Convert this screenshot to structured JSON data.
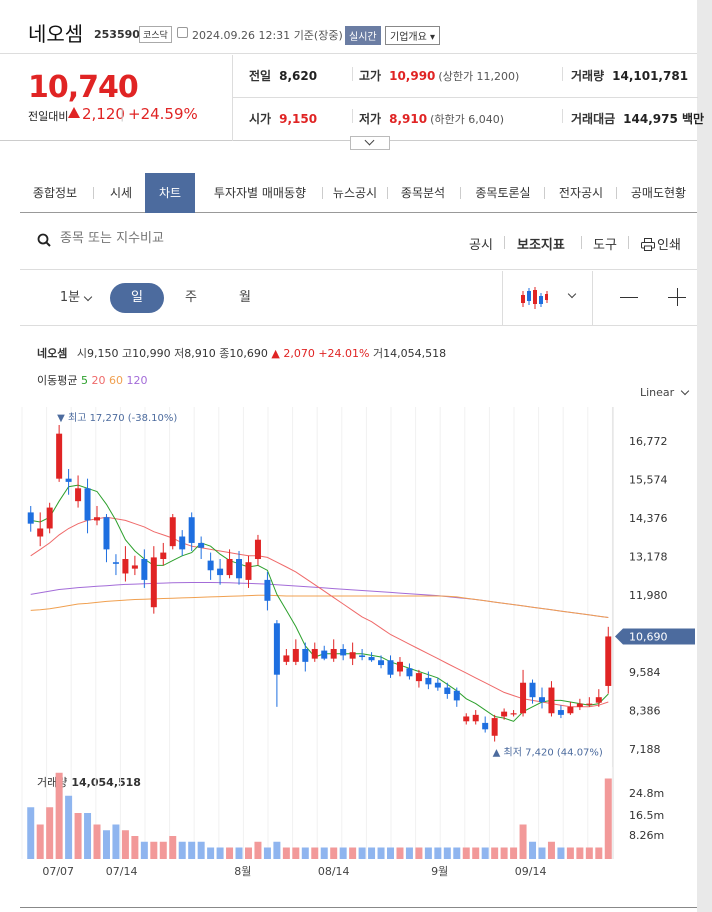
{
  "header": {
    "name": "네오셈",
    "code": "253590",
    "market": "코스닥",
    "datetime": "2024.09.26 12:31",
    "basis": "기준(장중)",
    "realtime": "실시간",
    "overview": "기업개요"
  },
  "quote": {
    "price": "10,740",
    "prev_label": "전일대비",
    "change": "2,120",
    "sep": "|",
    "change_pct": "+24.59%",
    "prev_close_label": "전일",
    "prev_close": "8,620",
    "high_label": "고가",
    "high": "10,990",
    "upper_limit": "(상한가 11,200)",
    "volume_label": "거래량",
    "volume": "14,101,781",
    "open_label": "시가",
    "open": "9,150",
    "low_label": "저가",
    "low": "8,910",
    "lower_limit": "(하한가 6,040)",
    "amount_label": "거래대금",
    "amount": "144,975 백만"
  },
  "tabs": [
    {
      "label": "종합정보"
    },
    {
      "label": "시세"
    },
    {
      "label": "차트"
    },
    {
      "label": "투자자별 매매동향"
    },
    {
      "label": "뉴스공시"
    },
    {
      "label": "종목분석"
    },
    {
      "label": "종목토론실"
    },
    {
      "label": "전자공시"
    },
    {
      "label": "공매도현황"
    }
  ],
  "toolbar": {
    "search_placeholder": "종목 또는 지수비교",
    "notice": "공시",
    "indicator": "보조지표",
    "tools": "도구",
    "print": "인쇄"
  },
  "periods": {
    "minute": "1분",
    "day": "일",
    "week": "주",
    "month": "월"
  },
  "legend": {
    "name": "네오셈",
    "open_k": "시",
    "open": "9,150",
    "high_k": "고",
    "high": "10,990",
    "low_k": "저",
    "low": "8,910",
    "close_k": "종",
    "close": "10,690",
    "change": "2,070",
    "change_pct": "+24.01%",
    "vol_k": "거",
    "vol": "14,054,518"
  },
  "ma": {
    "label": "이동평균",
    "p5": "5",
    "p20": "20",
    "p60": "60",
    "p120": "120",
    "c5": "#2ca02c",
    "c20": "#ef6a6a",
    "c60": "#f0a050",
    "c120": "#a36cd8"
  },
  "scale_mode": "Linear",
  "colors": {
    "up": "#e02424",
    "down": "#1e6fe0",
    "accent": "#4c6b9e"
  },
  "chart_data": {
    "type": "candlestick",
    "y_ticks": [
      "16,772",
      "15,574",
      "14,376",
      "13,178",
      "11,980",
      "9,584",
      "8,386",
      "7,188"
    ],
    "current_price_label": "10,690",
    "max_label": "최고 17,270 (-38.10%)",
    "min_label": "최저 7,420 (44.07%)",
    "x_ticks": [
      "07/07",
      "07/14",
      "8월",
      "08/14",
      "9월",
      "09/14"
    ],
    "volume_label": "거래량",
    "volume_value": "14,054,518",
    "volume_ticks": [
      "24.8m",
      "16.5m",
      "8.26m"
    ],
    "candles": [
      {
        "o": 14550,
        "c": 14200,
        "h": 14750,
        "l": 13950
      },
      {
        "o": 13800,
        "c": 14050,
        "h": 14550,
        "l": 13500
      },
      {
        "o": 14050,
        "c": 14700,
        "h": 14850,
        "l": 13900
      },
      {
        "o": 15600,
        "c": 17000,
        "h": 17270,
        "l": 15500
      },
      {
        "o": 15600,
        "c": 15500,
        "h": 15900,
        "l": 15100
      },
      {
        "o": 14900,
        "c": 15300,
        "h": 15700,
        "l": 14700
      },
      {
        "o": 15300,
        "c": 14300,
        "h": 15600,
        "l": 13900
      },
      {
        "o": 14300,
        "c": 14400,
        "h": 14750,
        "l": 14150
      },
      {
        "o": 14400,
        "c": 13400,
        "h": 14500,
        "l": 13000
      },
      {
        "o": 13000,
        "c": 12950,
        "h": 13250,
        "l": 12600
      },
      {
        "o": 12650,
        "c": 13100,
        "h": 13500,
        "l": 12400
      },
      {
        "o": 12800,
        "c": 12900,
        "h": 13200,
        "l": 12600
      },
      {
        "o": 13100,
        "c": 12450,
        "h": 13400,
        "l": 12200
      },
      {
        "o": 11600,
        "c": 13150,
        "h": 13500,
        "l": 11400
      },
      {
        "o": 13100,
        "c": 13300,
        "h": 13600,
        "l": 12900
      },
      {
        "o": 13500,
        "c": 14400,
        "h": 14500,
        "l": 13400
      },
      {
        "o": 13800,
        "c": 13400,
        "h": 14000,
        "l": 13200
      },
      {
        "o": 14400,
        "c": 13600,
        "h": 14550,
        "l": 13350
      },
      {
        "o": 13600,
        "c": 13450,
        "h": 13800,
        "l": 13100
      },
      {
        "o": 13050,
        "c": 12750,
        "h": 13300,
        "l": 12450
      },
      {
        "o": 12800,
        "c": 12600,
        "h": 13100,
        "l": 12300
      },
      {
        "o": 12600,
        "c": 13100,
        "h": 13400,
        "l": 12500
      },
      {
        "o": 13100,
        "c": 12500,
        "h": 13350,
        "l": 12300
      },
      {
        "o": 12450,
        "c": 13000,
        "h": 13200,
        "l": 12200
      },
      {
        "o": 13100,
        "c": 13700,
        "h": 13850,
        "l": 12900
      },
      {
        "o": 12450,
        "c": 11800,
        "h": 12700,
        "l": 11500
      },
      {
        "o": 11100,
        "c": 9500,
        "h": 11200,
        "l": 8500
      },
      {
        "o": 9900,
        "c": 10100,
        "h": 10300,
        "l": 9800
      },
      {
        "o": 9900,
        "c": 10300,
        "h": 10600,
        "l": 9800
      },
      {
        "o": 10300,
        "c": 9900,
        "h": 10500,
        "l": 9600
      },
      {
        "o": 10000,
        "c": 10300,
        "h": 10500,
        "l": 9900
      },
      {
        "o": 10250,
        "c": 10000,
        "h": 10400,
        "l": 9950
      },
      {
        "o": 10000,
        "c": 10300,
        "h": 10600,
        "l": 9900
      },
      {
        "o": 10300,
        "c": 10100,
        "h": 10450,
        "l": 9950
      },
      {
        "o": 10000,
        "c": 10200,
        "h": 10500,
        "l": 9800
      },
      {
        "o": 10100,
        "c": 10050,
        "h": 10300,
        "l": 9950
      },
      {
        "o": 10050,
        "c": 9950,
        "h": 10200,
        "l": 9900
      },
      {
        "o": 9950,
        "c": 9800,
        "h": 10100,
        "l": 9700
      },
      {
        "o": 9950,
        "c": 9500,
        "h": 10100,
        "l": 9400
      },
      {
        "o": 9600,
        "c": 9900,
        "h": 10050,
        "l": 9450
      },
      {
        "o": 9700,
        "c": 9450,
        "h": 9850,
        "l": 9350
      },
      {
        "o": 9300,
        "c": 9550,
        "h": 9650,
        "l": 9100
      },
      {
        "o": 9400,
        "c": 9200,
        "h": 9600,
        "l": 9050
      },
      {
        "o": 9250,
        "c": 9100,
        "h": 9400,
        "l": 9000
      },
      {
        "o": 9100,
        "c": 8900,
        "h": 9250,
        "l": 8750
      },
      {
        "o": 9000,
        "c": 8700,
        "h": 9100,
        "l": 8500
      },
      {
        "o": 8050,
        "c": 8200,
        "h": 8300,
        "l": 7950
      },
      {
        "o": 8050,
        "c": 8250,
        "h": 8400,
        "l": 7950
      },
      {
        "o": 8000,
        "c": 7800,
        "h": 8200,
        "l": 7700
      },
      {
        "o": 7600,
        "c": 8150,
        "h": 8250,
        "l": 7420
      },
      {
        "o": 8200,
        "c": 8350,
        "h": 8450,
        "l": 8100
      },
      {
        "o": 8300,
        "c": 8300,
        "h": 8400,
        "l": 8200
      },
      {
        "o": 8300,
        "c": 9250,
        "h": 9650,
        "l": 8200
      },
      {
        "o": 9250,
        "c": 8800,
        "h": 9350,
        "l": 8600
      },
      {
        "o": 8800,
        "c": 8650,
        "h": 9100,
        "l": 8450
      },
      {
        "o": 8300,
        "c": 9100,
        "h": 9300,
        "l": 8200
      },
      {
        "o": 8400,
        "c": 8250,
        "h": 8550,
        "l": 8150
      },
      {
        "o": 8300,
        "c": 8500,
        "h": 8650,
        "l": 8250
      },
      {
        "o": 8500,
        "c": 8600,
        "h": 8750,
        "l": 8400
      },
      {
        "o": 8600,
        "c": 8600,
        "h": 8800,
        "l": 8500
      },
      {
        "o": 8630,
        "c": 8800,
        "h": 9050,
        "l": 8500
      },
      {
        "o": 9150,
        "c": 10690,
        "h": 10990,
        "l": 8910
      }
    ],
    "volume_bars": [
      9,
      6,
      9,
      15,
      11,
      8,
      8,
      6,
      5,
      6,
      5,
      4,
      3,
      3,
      3,
      4,
      3,
      3,
      3,
      2,
      2,
      2,
      2,
      2,
      3,
      2,
      3,
      2,
      2,
      2,
      2,
      2,
      2,
      2,
      2,
      2,
      2,
      2,
      2,
      2,
      2,
      2,
      2,
      2,
      2,
      2,
      2,
      2,
      2,
      2,
      2,
      2,
      6,
      3,
      2,
      3,
      2,
      2,
      2,
      2,
      2,
      14.0
    ],
    "ma5": [
      14300,
      14250,
      14400,
      14900,
      15350,
      15400,
      15300,
      15200,
      14800,
      14300,
      13700,
      13350,
      13100,
      12900,
      12900,
      13050,
      13200,
      13300,
      13600,
      13500,
      13250,
      13050,
      12950,
      12850,
      12900,
      12750,
      12000,
      11500,
      11000,
      10400,
      10050,
      10150,
      10150,
      10150,
      10150,
      10150,
      10100,
      10050,
      9900,
      9800,
      9700,
      9600,
      9500,
      9400,
      9200,
      9000,
      8750,
      8600,
      8400,
      8200,
      8150,
      8050,
      8350,
      8500,
      8650,
      8700,
      8700,
      8650,
      8600,
      8550,
      8600,
      8900
    ],
    "ma20": [
      13200,
      13400,
      13600,
      13850,
      14050,
      14200,
      14300,
      14350,
      14400,
      14350,
      14300,
      14200,
      14100,
      13950,
      13850,
      13750,
      13600,
      13500,
      13450,
      13400,
      13350,
      13300,
      13250,
      13200,
      13200,
      13150,
      13000,
      12850,
      12700,
      12500,
      12300,
      12100,
      11900,
      11700,
      11500,
      11300,
      11150,
      10950,
      10750,
      10600,
      10450,
      10300,
      10150,
      10000,
      9850,
      9700,
      9550,
      9400,
      9250,
      9100,
      8950,
      8850,
      8750,
      8700,
      8650,
      8600,
      8550,
      8500,
      8500,
      8500,
      8550,
      8650
    ],
    "ma60": [
      11500,
      11520,
      11550,
      11600,
      11650,
      11700,
      11720,
      11750,
      11780,
      11800,
      11820,
      11840,
      11850,
      11860,
      11870,
      11880,
      11890,
      11900,
      11910,
      11920,
      11930,
      11940,
      11950,
      11960,
      11970,
      11970,
      11960,
      11950,
      11950,
      11950,
      11950,
      11950,
      11950,
      11950,
      11950,
      11950,
      11950,
      11950,
      11950,
      11950,
      11950,
      11950,
      11950,
      11950,
      11940,
      11920,
      11880,
      11840,
      11800,
      11760,
      11720,
      11680,
      11640,
      11600,
      11560,
      11520,
      11480,
      11440,
      11400,
      11360,
      11320,
      11280
    ],
    "ma120": [
      12000,
      12050,
      12100,
      12150,
      12180,
      12210,
      12230,
      12250,
      12270,
      12290,
      12310,
      12320,
      12330,
      12340,
      12350,
      12360,
      12365,
      12370,
      12370,
      12370,
      12365,
      12360,
      12350,
      12340,
      12330,
      12320,
      12300,
      12280,
      12260,
      12240,
      12220,
      12200,
      12180,
      12160,
      12140,
      12120,
      12100,
      12080,
      12060,
      12040,
      12020,
      12000,
      11980,
      11960,
      11930,
      11900,
      11870,
      11840,
      11800,
      11760,
      11720,
      11680,
      11640,
      11600,
      11560,
      11520,
      11480,
      11440,
      11400,
      11360,
      11320,
      11280
    ]
  }
}
